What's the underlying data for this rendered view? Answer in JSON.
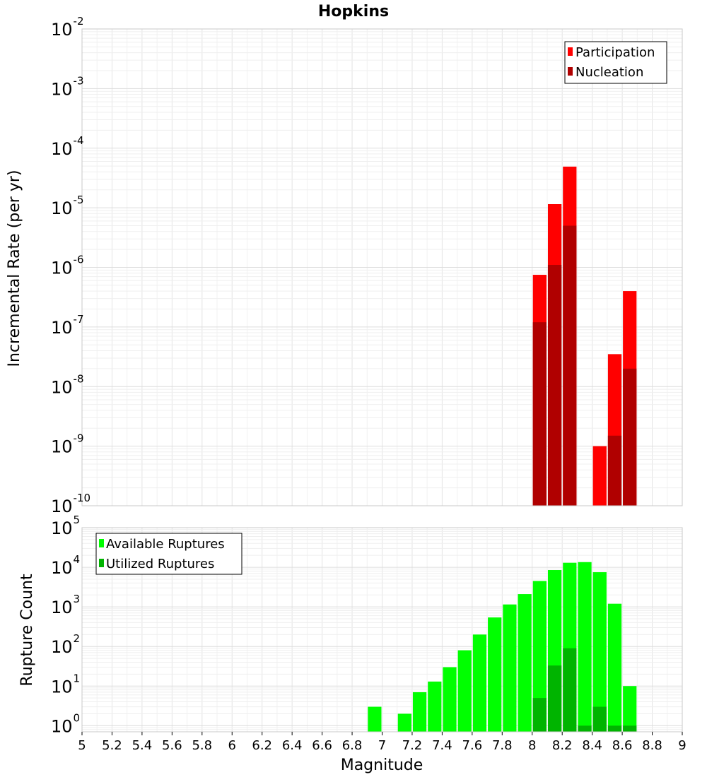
{
  "chart_data": [
    {
      "type": "bar",
      "title": "Hopkins",
      "ylabel": "Incremental Rate (per yr)",
      "xlabel": "",
      "xlim": [
        5,
        9
      ],
      "ylim": [
        1e-10,
        0.01
      ],
      "yscale": "log",
      "grid": true,
      "bin_width": 0.1,
      "legend_position": "top-right",
      "series": [
        {
          "name": "Participation",
          "color": "#ff0000",
          "x": [
            8.05,
            8.15,
            8.25,
            8.45,
            8.55,
            8.65
          ],
          "values": [
            7.5e-07,
            1.15e-05,
            4.9e-05,
            1e-09,
            3.5e-08,
            4e-07
          ]
        },
        {
          "name": "Nucleation",
          "color": "#b00000",
          "x": [
            8.05,
            8.15,
            8.25,
            8.55,
            8.65
          ],
          "values": [
            1.2e-07,
            1.1e-06,
            5e-06,
            1.5e-09,
            2e-08
          ]
        }
      ]
    },
    {
      "type": "bar",
      "title": "",
      "ylabel": "Rupture Count",
      "xlabel": "Magnitude",
      "xlim": [
        5,
        9
      ],
      "ylim": [
        0.7,
        100000.0
      ],
      "yscale": "log",
      "grid": true,
      "bin_width": 0.1,
      "legend_position": "top-left",
      "xticks": [
        "5",
        "5.2",
        "5.4",
        "5.6",
        "5.8",
        "6",
        "6.2",
        "6.4",
        "6.6",
        "6.8",
        "7",
        "7.2",
        "7.4",
        "7.6",
        "7.8",
        "8",
        "8.2",
        "8.4",
        "8.6",
        "8.8",
        "9"
      ],
      "series": [
        {
          "name": "Available Ruptures",
          "color": "#00ff00",
          "x": [
            6.95,
            7.15,
            7.25,
            7.35,
            7.45,
            7.55,
            7.65,
            7.75,
            7.85,
            7.95,
            8.05,
            8.15,
            8.25,
            8.35,
            8.45,
            8.55,
            8.65
          ],
          "values": [
            3,
            2,
            7,
            13,
            30,
            80,
            200,
            540,
            1150,
            2100,
            4500,
            8500,
            13000,
            13500,
            7500,
            1200,
            10
          ]
        },
        {
          "name": "Utilized Ruptures",
          "color": "#00b400",
          "x": [
            8.05,
            8.15,
            8.25,
            8.35,
            8.45,
            8.55,
            8.65
          ],
          "values": [
            5,
            33,
            90,
            1,
            3,
            1,
            1
          ]
        }
      ]
    }
  ]
}
